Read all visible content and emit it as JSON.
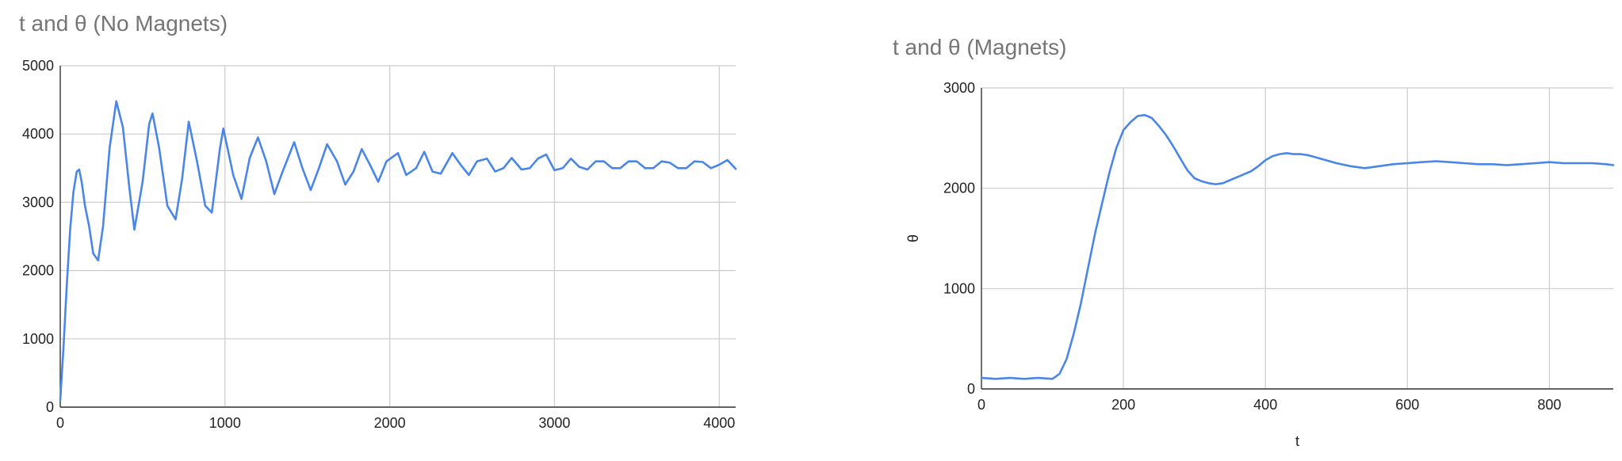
{
  "colors": {
    "line": "#4a86e8",
    "grid": "#cccccc",
    "axis": "#333333",
    "title": "#757575"
  },
  "chart_data": [
    {
      "type": "line",
      "title": "t and θ (No Magnets)",
      "xlabel": "",
      "ylabel": "",
      "xlim": [
        0,
        4100
      ],
      "ylim": [
        0,
        5000
      ],
      "xticks": [
        0,
        1000,
        2000,
        3000,
        4000
      ],
      "yticks": [
        0,
        1000,
        2000,
        3000,
        4000,
        5000
      ],
      "grid": true,
      "legend": "none",
      "series": [
        {
          "x": [
            0,
            20,
            40,
            60,
            80,
            100,
            115,
            130,
            150,
            175,
            200,
            230,
            260,
            300,
            340,
            380,
            420,
            450,
            500,
            540,
            560,
            600,
            650,
            700,
            740,
            780,
            830,
            880,
            920,
            970,
            990,
            1050,
            1100,
            1150,
            1200,
            1250,
            1300,
            1350,
            1420,
            1470,
            1520,
            1570,
            1620,
            1680,
            1730,
            1780,
            1830,
            1880,
            1930,
            1980,
            2050,
            2100,
            2160,
            2210,
            2260,
            2310,
            2380,
            2430,
            2480,
            2530,
            2590,
            2640,
            2690,
            2740,
            2800,
            2850,
            2900,
            2950,
            3000,
            3050,
            3100,
            3150,
            3200,
            3250,
            3300,
            3350,
            3400,
            3450,
            3500,
            3550,
            3600,
            3650,
            3700,
            3750,
            3800,
            3850,
            3900,
            3950,
            4000,
            4050,
            4100
          ],
          "y": [
            100,
            900,
            1800,
            2600,
            3150,
            3450,
            3480,
            3300,
            2950,
            2650,
            2250,
            2150,
            2650,
            3800,
            4480,
            4100,
            3200,
            2600,
            3300,
            4150,
            4300,
            3800,
            2950,
            2750,
            3350,
            4180,
            3600,
            2950,
            2850,
            3800,
            4080,
            3400,
            3050,
            3650,
            3950,
            3600,
            3120,
            3450,
            3880,
            3500,
            3180,
            3500,
            3850,
            3600,
            3260,
            3450,
            3780,
            3550,
            3300,
            3600,
            3720,
            3400,
            3500,
            3740,
            3450,
            3420,
            3720,
            3550,
            3400,
            3600,
            3640,
            3450,
            3500,
            3650,
            3480,
            3500,
            3640,
            3700,
            3470,
            3500,
            3640,
            3520,
            3480,
            3600,
            3600,
            3500,
            3500,
            3600,
            3600,
            3500,
            3500,
            3600,
            3580,
            3500,
            3500,
            3600,
            3590,
            3500,
            3550,
            3620,
            3490
          ]
        }
      ]
    },
    {
      "type": "line",
      "title": "t and θ (Magnets)",
      "xlabel": "t",
      "ylabel": "θ",
      "xlim": [
        0,
        890
      ],
      "ylim": [
        0,
        3000
      ],
      "xticks": [
        0,
        200,
        400,
        600,
        800
      ],
      "yticks": [
        0,
        1000,
        2000,
        3000
      ],
      "grid": true,
      "legend": "none",
      "series": [
        {
          "x": [
            0,
            20,
            40,
            60,
            80,
            100,
            110,
            120,
            130,
            140,
            150,
            160,
            170,
            180,
            190,
            200,
            210,
            220,
            230,
            240,
            250,
            260,
            270,
            280,
            290,
            300,
            310,
            320,
            330,
            340,
            350,
            360,
            370,
            380,
            390,
            400,
            410,
            420,
            430,
            440,
            450,
            460,
            470,
            480,
            500,
            520,
            540,
            560,
            580,
            600,
            620,
            640,
            660,
            680,
            700,
            720,
            740,
            760,
            780,
            800,
            820,
            840,
            860,
            880,
            890
          ],
          "y": [
            110,
            100,
            110,
            100,
            110,
            100,
            150,
            300,
            550,
            850,
            1200,
            1550,
            1850,
            2150,
            2400,
            2580,
            2660,
            2720,
            2730,
            2700,
            2620,
            2530,
            2420,
            2300,
            2180,
            2100,
            2070,
            2050,
            2040,
            2050,
            2080,
            2110,
            2140,
            2170,
            2220,
            2280,
            2320,
            2340,
            2350,
            2340,
            2340,
            2330,
            2310,
            2290,
            2250,
            2220,
            2200,
            2220,
            2240,
            2250,
            2260,
            2270,
            2260,
            2250,
            2240,
            2240,
            2230,
            2240,
            2250,
            2260,
            2250,
            2250,
            2250,
            2240,
            2230
          ]
        }
      ]
    }
  ]
}
